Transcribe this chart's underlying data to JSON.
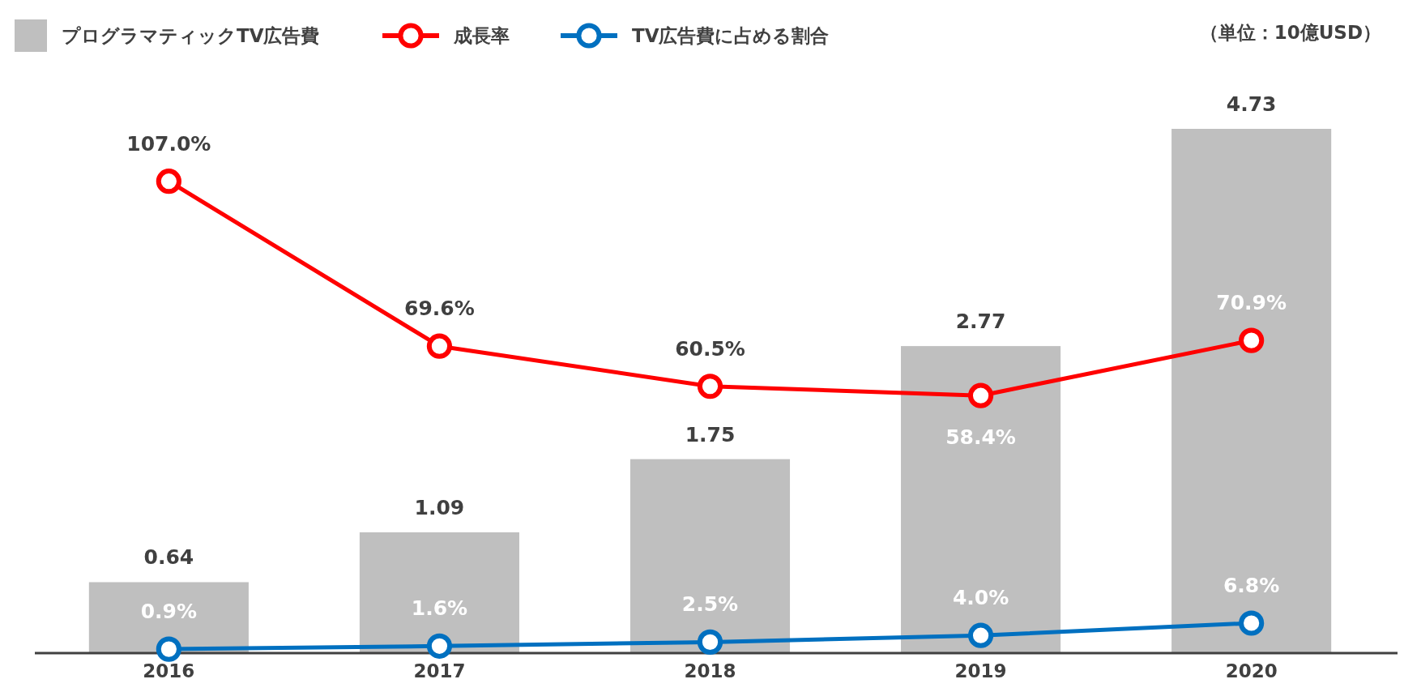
{
  "chart_data": {
    "type": "bar",
    "categories": [
      "2016",
      "2017",
      "2018",
      "2019",
      "2020"
    ],
    "series": [
      {
        "name": "プログラマティックTV広告費",
        "color": "#bfbfbf",
        "values": [
          0.64,
          1.09,
          1.75,
          2.77,
          4.73
        ],
        "value_labels": [
          "0.64",
          "1.09",
          "1.75",
          "2.77",
          "4.73"
        ]
      },
      {
        "name": "成長率",
        "type": "line",
        "axis": "y2",
        "color": "#ff0000",
        "values": [
          107.0,
          69.6,
          60.5,
          58.4,
          70.9
        ],
        "value_labels": [
          "107.0%",
          "69.6%",
          "60.5%",
          "58.4%",
          "70.9%"
        ]
      },
      {
        "name": "TV広告費に占める割合",
        "type": "line",
        "axis": "y2",
        "color": "#0070c0",
        "values": [
          0.9,
          1.6,
          2.5,
          4.0,
          6.8
        ],
        "value_labels": [
          "0.9%",
          "1.6%",
          "2.5%",
          "4.0%",
          "6.8%"
        ]
      }
    ],
    "tick_labels": "x",
    "legend": "top",
    "marker": "circle",
    "line_style": "solid",
    "annotations": [
      "（単位：10億USD）"
    ]
  }
}
